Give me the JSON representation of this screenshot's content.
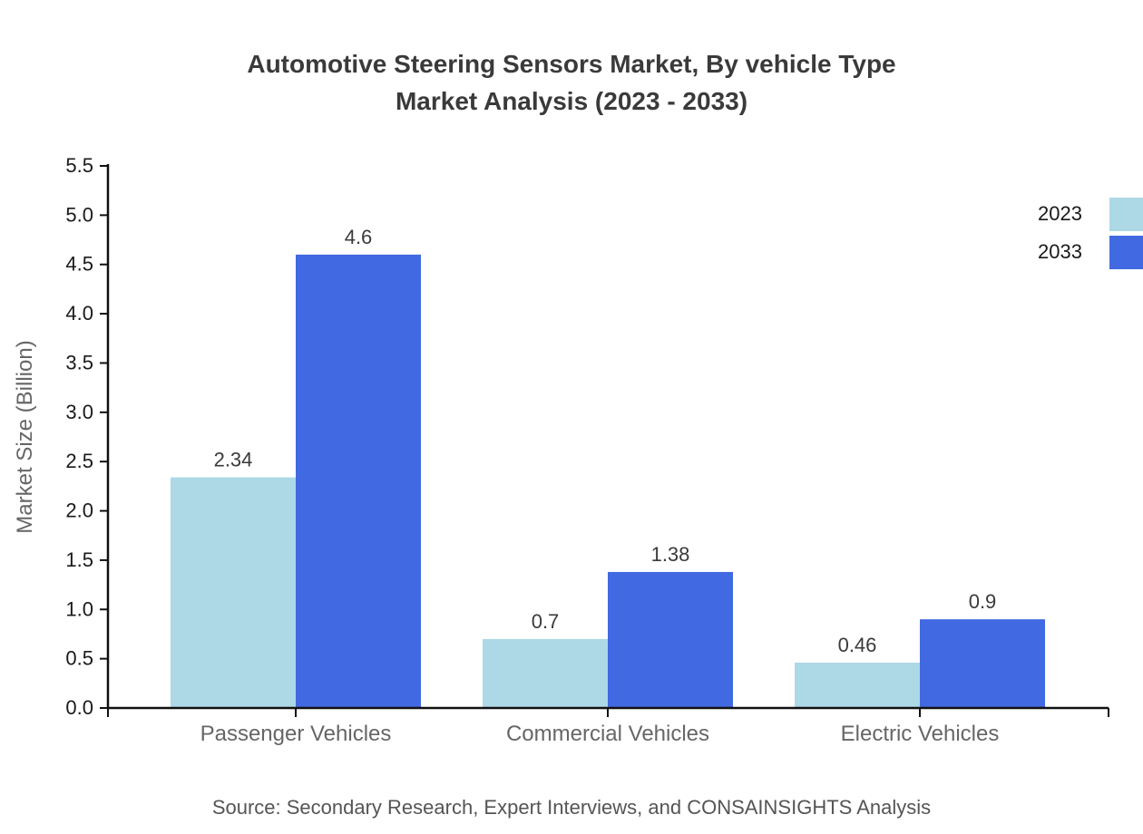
{
  "title": {
    "line1": "Automotive Steering Sensors Market, By vehicle Type",
    "line2": "Market Analysis (2023 - 2033)"
  },
  "legend": {
    "items": [
      {
        "label": "2023",
        "color": "#ADD8E6"
      },
      {
        "label": "2033",
        "color": "#4169E1"
      }
    ]
  },
  "source": "Source: Secondary Research, Expert Interviews, and CONSAINSIGHTS Analysis",
  "chart_data": {
    "type": "bar",
    "title": "Automotive Steering Sensors Market, By vehicle Type Market Analysis (2023 - 2033)",
    "categories": [
      "Passenger Vehicles",
      "Commercial Vehicles",
      "Electric Vehicles"
    ],
    "series": [
      {
        "name": "2023",
        "color": "#ADD8E6",
        "values": [
          2.34,
          0.7,
          0.46
        ]
      },
      {
        "name": "2033",
        "color": "#4169E1",
        "values": [
          4.6,
          1.38,
          0.9
        ]
      }
    ],
    "bar_value_labels": [
      [
        "2.34",
        "0.7",
        "0.46"
      ],
      [
        "4.6",
        "1.38",
        "0.9"
      ]
    ],
    "xlabel": "",
    "ylabel": "Market Size (Billion)",
    "ylim": [
      0,
      5.5
    ],
    "ytick_step": 0.5,
    "ytick_labels": [
      "0.0",
      "0.5",
      "1.0",
      "1.5",
      "2.0",
      "2.5",
      "3.0",
      "3.5",
      "4.0",
      "4.5",
      "5.0",
      "5.5"
    ],
    "grid": false,
    "legend_position": "top-right"
  }
}
